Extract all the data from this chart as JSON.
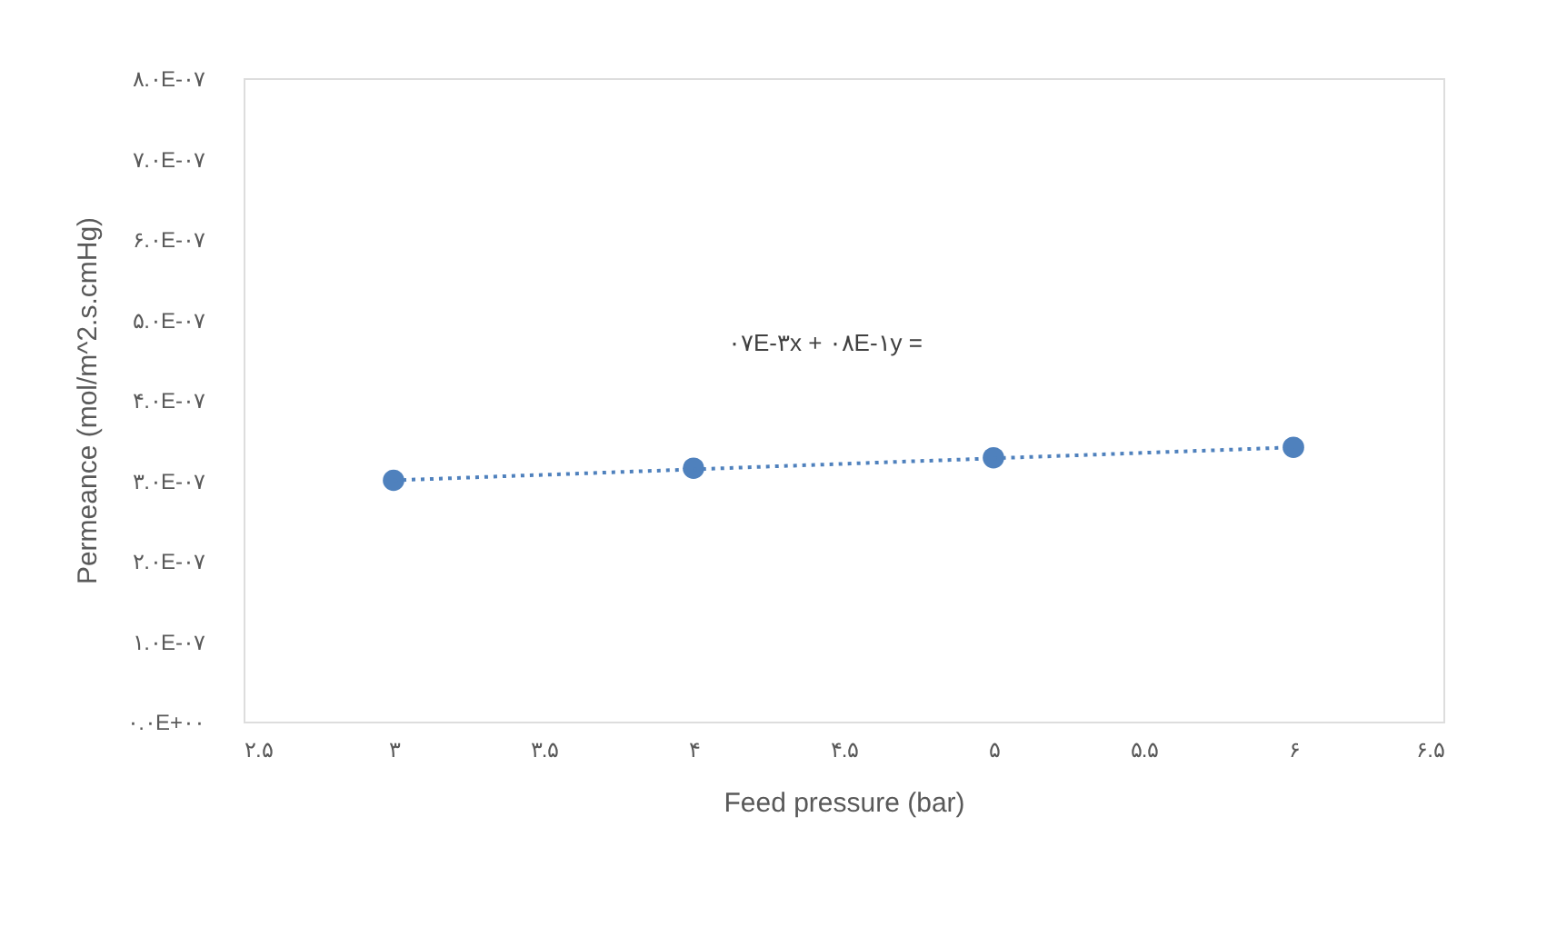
{
  "chart_data": {
    "type": "scatter",
    "xlabel": "Feed pressure (bar)",
    "ylabel": "Permeance (mol/m^2.s.cmHg)",
    "x": [
      3,
      4,
      5,
      6
    ],
    "series": [
      {
        "color": "#4f81bd",
        "marker": "circle",
        "values": [
          3e-07,
          3.15e-07,
          3.28e-07,
          3.41e-07
        ]
      },
      {
        "type": "line",
        "color": "#4f81bd",
        "line_style": "dotted",
        "marker": "none",
        "x": [
          3,
          6
        ],
        "values": [
          3e-07,
          3.41e-07
        ]
      }
    ],
    "annotations": [
      "۰۷E-۳x + ۰۸E-۱y ="
    ],
    "xlim": [
      2.5,
      6.5
    ],
    "xticks": [
      {
        "value": 2.5,
        "label": "۲.۵"
      },
      {
        "value": 3,
        "label": "۳"
      },
      {
        "value": 3.5,
        "label": "۳.۵"
      },
      {
        "value": 4,
        "label": "۴"
      },
      {
        "value": 4.5,
        "label": "۴.۵"
      },
      {
        "value": 5,
        "label": "۵"
      },
      {
        "value": 5.5,
        "label": "۵.۵"
      },
      {
        "value": 6,
        "label": "۶"
      },
      {
        "value": 6.5,
        "label": "۶.۵"
      }
    ],
    "ylim": [
      0,
      8e-07
    ],
    "yticks": [
      {
        "value": 0,
        "label": "۰.۰E+۰۰"
      },
      {
        "value": 1e-07,
        "label": "۱.۰E-۰۷"
      },
      {
        "value": 2e-07,
        "label": "۲.۰E-۰۷"
      },
      {
        "value": 3e-07,
        "label": "۳.۰E-۰۷"
      },
      {
        "value": 4e-07,
        "label": "۴.۰E-۰۷"
      },
      {
        "value": 5e-07,
        "label": "۵.۰E-۰۷"
      },
      {
        "value": 6e-07,
        "label": "۶.۰E-۰۷"
      },
      {
        "value": 7e-07,
        "label": "۷.۰E-۰۷"
      },
      {
        "value": 8e-07,
        "label": "۸.۰E-۰۷"
      }
    ],
    "grid": false
  }
}
